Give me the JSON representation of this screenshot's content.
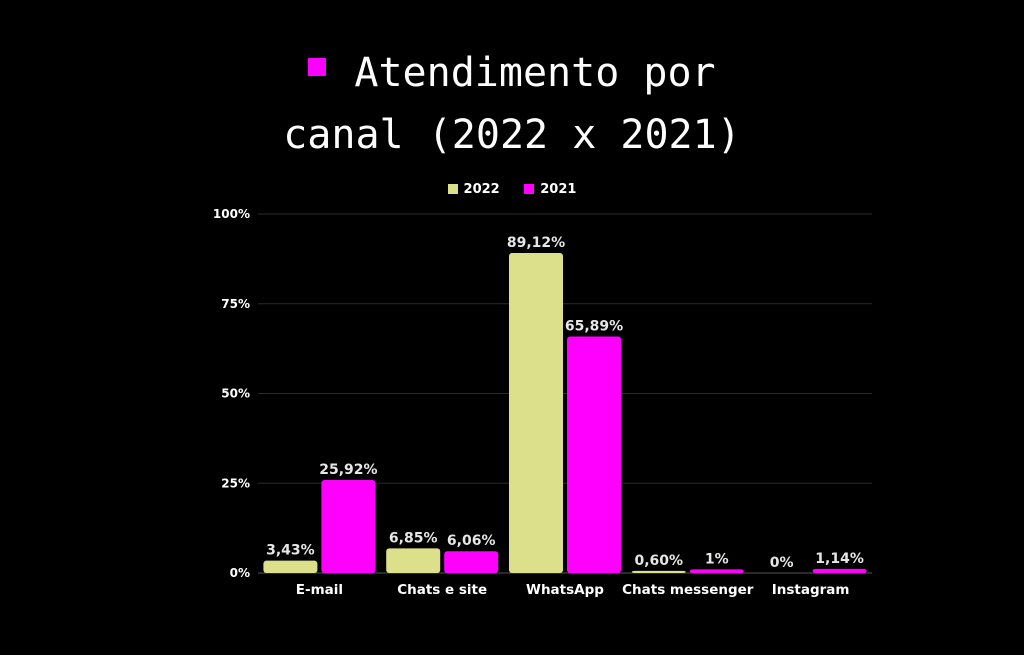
{
  "title": {
    "line1": "Atendimento por",
    "line2": "canal (2022 x 2021)",
    "bullet_color": "#ff00ff"
  },
  "chart_data": {
    "type": "bar",
    "categories": [
      "E-mail",
      "Chats e site",
      "WhatsApp",
      "Chats messenger",
      "Instagram"
    ],
    "series": [
      {
        "name": "2022",
        "color": "#dde08a",
        "values": [
          3.43,
          6.85,
          89.12,
          0.6,
          0
        ],
        "labels": [
          "3,43%",
          "6,85%",
          "89,12%",
          "0,60%",
          "0%"
        ]
      },
      {
        "name": "2021",
        "color": "#ff00ff",
        "values": [
          25.92,
          6.06,
          65.89,
          1,
          1.14
        ],
        "labels": [
          "25,92%",
          "6,06%",
          "65,89%",
          "1%",
          "1,14%"
        ]
      }
    ],
    "yticks": [
      {
        "value": 0,
        "label": "0%"
      },
      {
        "value": 25,
        "label": "25%"
      },
      {
        "value": 50,
        "label": "50%"
      },
      {
        "value": 75,
        "label": "75%"
      },
      {
        "value": 100,
        "label": "100%"
      }
    ],
    "ylim": [
      0,
      100
    ],
    "grid": true,
    "legend_position": "top-center",
    "background": "#000000"
  }
}
